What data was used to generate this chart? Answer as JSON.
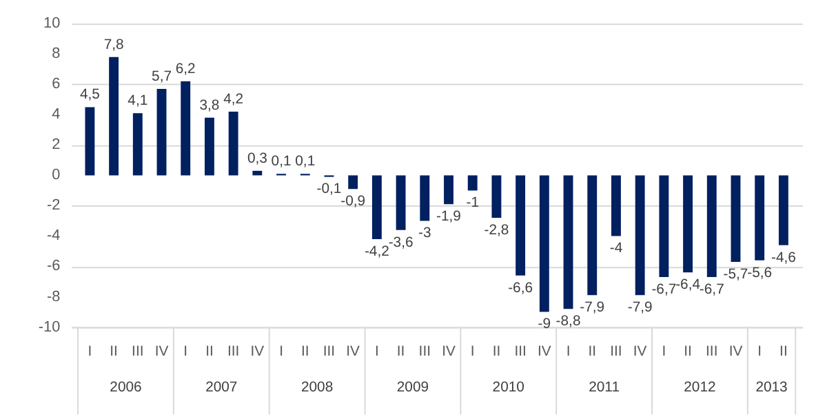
{
  "chart_data": {
    "type": "bar",
    "categories": [
      "I",
      "II",
      "III",
      "IV",
      "I",
      "II",
      "III",
      "IV",
      "I",
      "II",
      "III",
      "IV",
      "I",
      "II",
      "III",
      "IV",
      "I",
      "II",
      "III",
      "IV",
      "I",
      "II",
      "III",
      "IV",
      "I",
      "II",
      "III",
      "IV",
      "I",
      "II"
    ],
    "values": [
      4.5,
      7.8,
      4.1,
      5.7,
      6.2,
      3.8,
      4.2,
      0.3,
      0.1,
      0.1,
      -0.1,
      -0.9,
      -4.2,
      -3.6,
      -3,
      -1.9,
      -1,
      -2.8,
      -6.6,
      -9,
      -8.8,
      -7.9,
      -4,
      -7.9,
      -6.7,
      -6.4,
      -6.7,
      -5.7,
      -5.6,
      -4.6
    ],
    "value_labels": [
      "4,5",
      "7,8",
      "4,1",
      "5,7",
      "6,2",
      "3,8",
      "4,2",
      "0,3",
      "0,1",
      "0,1",
      "-0,1",
      "-0,9",
      "-4,2",
      "-3,6",
      "-3",
      "-1,9",
      "-1",
      "-2,8",
      "-6,6",
      "-9",
      "-8,8",
      "-7,9",
      "-4",
      "-7,9",
      "-6,7",
      "-6,4",
      "-6,7",
      "-5,7",
      "-5,6",
      "-4,6"
    ],
    "color": "#002060",
    "ylim": [
      -10,
      10
    ],
    "yticks": [
      -10,
      -8,
      -6,
      -4,
      -2,
      0,
      2,
      4,
      6,
      8,
      10
    ],
    "grid": "y",
    "annotations": [
      "2006",
      "2007",
      "2008",
      "2009",
      "2010",
      "2011",
      "2012",
      "2013"
    ]
  }
}
